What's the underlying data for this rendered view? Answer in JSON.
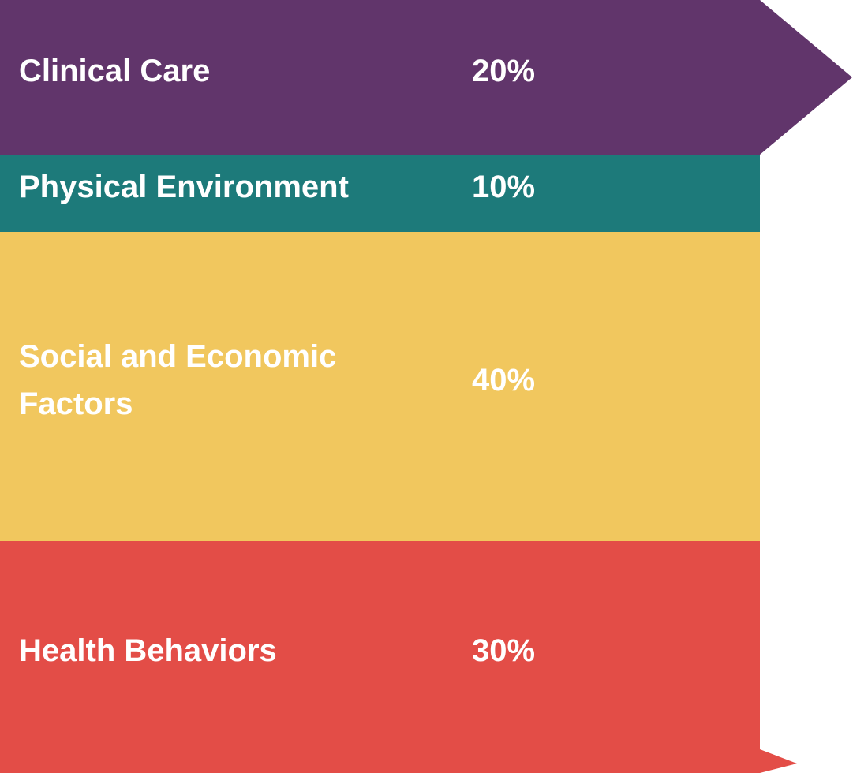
{
  "chart_data": {
    "type": "stacked-band",
    "categories": [
      "Clinical Care",
      "Physical Environment",
      "Social and Economic Factors",
      "Health Behaviors"
    ],
    "values": [
      20,
      10,
      40,
      30
    ],
    "value_labels": [
      "20%",
      "10%",
      "40%",
      "30%"
    ],
    "colors": [
      "#61356b",
      "#1d7a7a",
      "#f1c75e",
      "#e34d47"
    ]
  }
}
